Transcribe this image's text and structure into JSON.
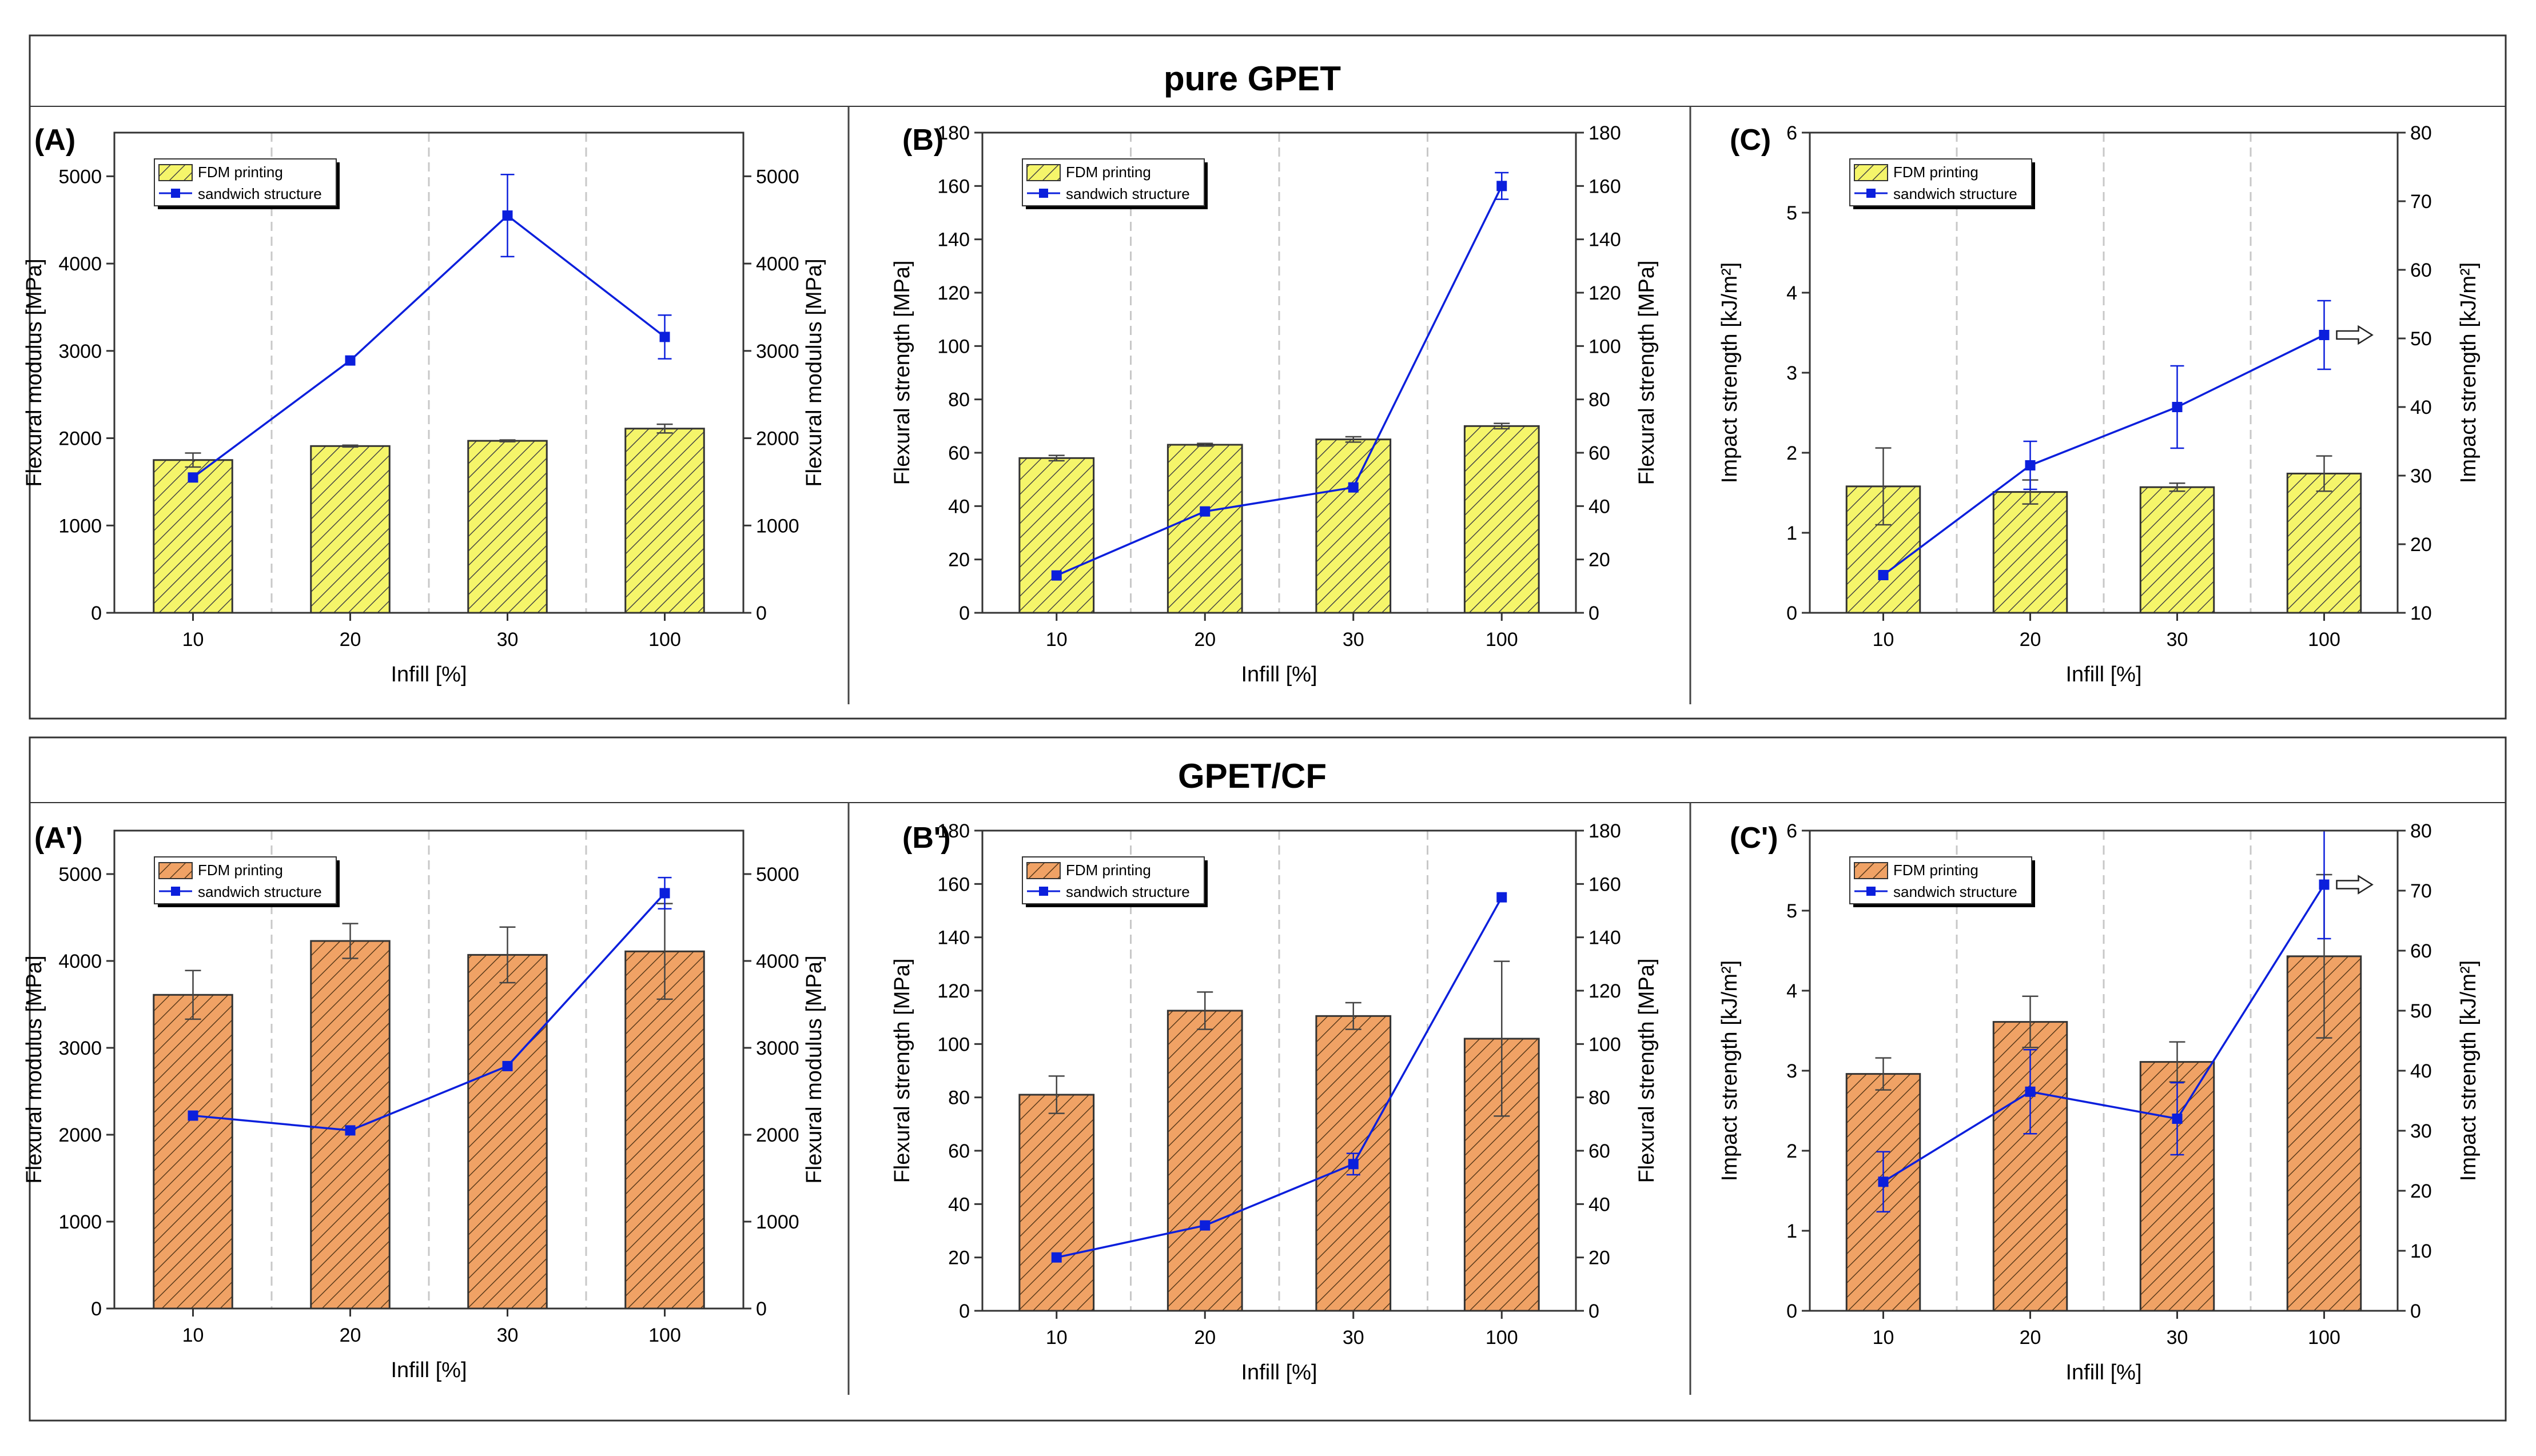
{
  "figure": {
    "section_titles": [
      "pure GPET",
      "GPET/CF"
    ],
    "x_categories": [
      "10",
      "20",
      "30",
      "100"
    ],
    "x_label": "Infill [%]",
    "legend_bar": "FDM printing",
    "legend_line": "sandwich structure",
    "colors": {
      "bar_pure": "#f5f56a",
      "bar_cf": "#f0a265",
      "line": "#0b1fdc",
      "marker": "#0b1fdc",
      "border": "#555555",
      "gridline": "#c8c8c8"
    }
  },
  "chart_data": [
    {
      "id": "A",
      "panel_label": "(A)",
      "type": "bar+line",
      "section": "pure GPET",
      "categories": [
        "10",
        "20",
        "30",
        "100"
      ],
      "left_ylabel": "Flexural modulus [MPa]",
      "right_ylabel": "Flexural modulus [MPa]",
      "ylim": [
        0,
        5500
      ],
      "ylim_right": [
        0,
        5500
      ],
      "left_ticks": [
        "0",
        "1000",
        "2000",
        "3000",
        "4000",
        "5000"
      ],
      "right_ticks": [
        "0",
        "1000",
        "2000",
        "3000",
        "4000",
        "5000"
      ],
      "series": [
        {
          "name": "FDM printing",
          "kind": "bar",
          "values": [
            1750,
            1910,
            1970,
            2110
          ],
          "errors": [
            80,
            10,
            10,
            50
          ]
        },
        {
          "name": "sandwich structure",
          "kind": "line",
          "axis": "right",
          "values": [
            1550,
            2890,
            4550,
            3160
          ],
          "errors": [
            0,
            0,
            470,
            250
          ]
        }
      ]
    },
    {
      "id": "B",
      "panel_label": "(B)",
      "type": "bar+line",
      "section": "pure GPET",
      "categories": [
        "10",
        "20",
        "30",
        "100"
      ],
      "left_ylabel": "Flexural strength [MPa]",
      "right_ylabel": "Flexural strength [MPa]",
      "ylim": [
        0,
        180
      ],
      "ylim_right": [
        0,
        180
      ],
      "left_ticks": [
        "0",
        "20",
        "40",
        "60",
        "80",
        "100",
        "120",
        "140",
        "160",
        "180"
      ],
      "right_ticks": [
        "0",
        "20",
        "40",
        "60",
        "80",
        "100",
        "120",
        "140",
        "160",
        "180"
      ],
      "series": [
        {
          "name": "FDM printing",
          "kind": "bar",
          "values": [
            58,
            63,
            65,
            70
          ],
          "errors": [
            1,
            0.5,
            1,
            1
          ]
        },
        {
          "name": "sandwich structure",
          "kind": "line",
          "axis": "right",
          "values": [
            14,
            38,
            47,
            160
          ],
          "errors": [
            0,
            0,
            0,
            5
          ]
        }
      ]
    },
    {
      "id": "C",
      "panel_label": "(C)",
      "type": "bar+line",
      "section": "pure GPET",
      "categories": [
        "10",
        "20",
        "30",
        "100"
      ],
      "left_ylabel": "Impact strength [kJ/m²]",
      "right_ylabel": "Impact strength [kJ/m²]",
      "ylim": [
        0,
        6
      ],
      "ylim_right": [
        10,
        80
      ],
      "left_ticks": [
        "0",
        "1",
        "2",
        "3",
        "4",
        "5",
        "6"
      ],
      "right_ticks": [
        "10",
        "20",
        "30",
        "40",
        "50",
        "60",
        "70",
        "80"
      ],
      "annotation": "arrow pointing right at last line point",
      "series": [
        {
          "name": "FDM printing",
          "kind": "bar",
          "values": [
            1.58,
            1.51,
            1.57,
            1.74
          ],
          "errors": [
            0.48,
            0.15,
            0.05,
            0.22
          ]
        },
        {
          "name": "sandwich structure",
          "kind": "line",
          "axis": "right",
          "values": [
            15.5,
            31.5,
            40,
            50.5
          ],
          "errors": [
            0,
            3.5,
            6,
            5
          ]
        }
      ]
    },
    {
      "id": "A'",
      "panel_label": "(A')",
      "type": "bar+line",
      "section": "GPET/CF",
      "categories": [
        "10",
        "20",
        "30",
        "100"
      ],
      "left_ylabel": "Flexural modulus [MPa]",
      "right_ylabel": "Flexural modulus [MPa]",
      "ylim": [
        0,
        5500
      ],
      "ylim_right": [
        0,
        5500
      ],
      "left_ticks": [
        "0",
        "1000",
        "2000",
        "3000",
        "4000",
        "5000"
      ],
      "right_ticks": [
        "0",
        "1000",
        "2000",
        "3000",
        "4000",
        "5000"
      ],
      "series": [
        {
          "name": "FDM printing",
          "kind": "bar",
          "values": [
            3610,
            4230,
            4070,
            4110
          ],
          "errors": [
            280,
            200,
            320,
            550
          ]
        },
        {
          "name": "sandwich structure",
          "kind": "line",
          "axis": "right",
          "values": [
            2220,
            2050,
            2790,
            4780
          ],
          "errors": [
            0,
            0,
            0,
            180
          ]
        }
      ]
    },
    {
      "id": "B'",
      "panel_label": "(B')",
      "type": "bar+line",
      "section": "GPET/CF",
      "categories": [
        "10",
        "20",
        "30",
        "100"
      ],
      "left_ylabel": "Flexural strength [MPa]",
      "right_ylabel": "Flexural strength [MPa]",
      "ylim": [
        0,
        180
      ],
      "ylim_right": [
        0,
        180
      ],
      "left_ticks": [
        "0",
        "20",
        "40",
        "60",
        "80",
        "100",
        "120",
        "140",
        "160",
        "180"
      ],
      "right_ticks": [
        "0",
        "20",
        "40",
        "60",
        "80",
        "100",
        "120",
        "140",
        "160",
        "180"
      ],
      "series": [
        {
          "name": "FDM printing",
          "kind": "bar",
          "values": [
            81,
            112.5,
            110.5,
            102
          ],
          "errors": [
            7,
            7,
            5,
            29
          ]
        },
        {
          "name": "sandwich structure",
          "kind": "line",
          "axis": "right",
          "values": [
            20,
            32,
            55,
            155
          ],
          "errors": [
            0,
            0,
            4,
            0
          ]
        }
      ]
    },
    {
      "id": "C'",
      "panel_label": "(C')",
      "type": "bar+line",
      "section": "GPET/CF",
      "categories": [
        "10",
        "20",
        "30",
        "100"
      ],
      "left_ylabel": "Impact strength [kJ/m²]",
      "right_ylabel": "Impact strength [kJ/m²]",
      "ylim": [
        0,
        6
      ],
      "ylim_right": [
        0,
        80
      ],
      "left_ticks": [
        "0",
        "1",
        "2",
        "3",
        "4",
        "5",
        "6"
      ],
      "right_ticks": [
        "0",
        "10",
        "20",
        "30",
        "40",
        "50",
        "60",
        "70",
        "80"
      ],
      "annotation": "arrow pointing right at last line point",
      "series": [
        {
          "name": "FDM printing",
          "kind": "bar",
          "values": [
            2.96,
            3.61,
            3.11,
            4.43
          ],
          "errors": [
            0.2,
            0.32,
            0.25,
            1.02
          ]
        },
        {
          "name": "sandwich structure",
          "kind": "line",
          "axis": "right",
          "values": [
            21.5,
            36.5,
            32,
            71
          ],
          "errors": [
            5,
            7,
            6,
            9
          ]
        }
      ]
    }
  ]
}
